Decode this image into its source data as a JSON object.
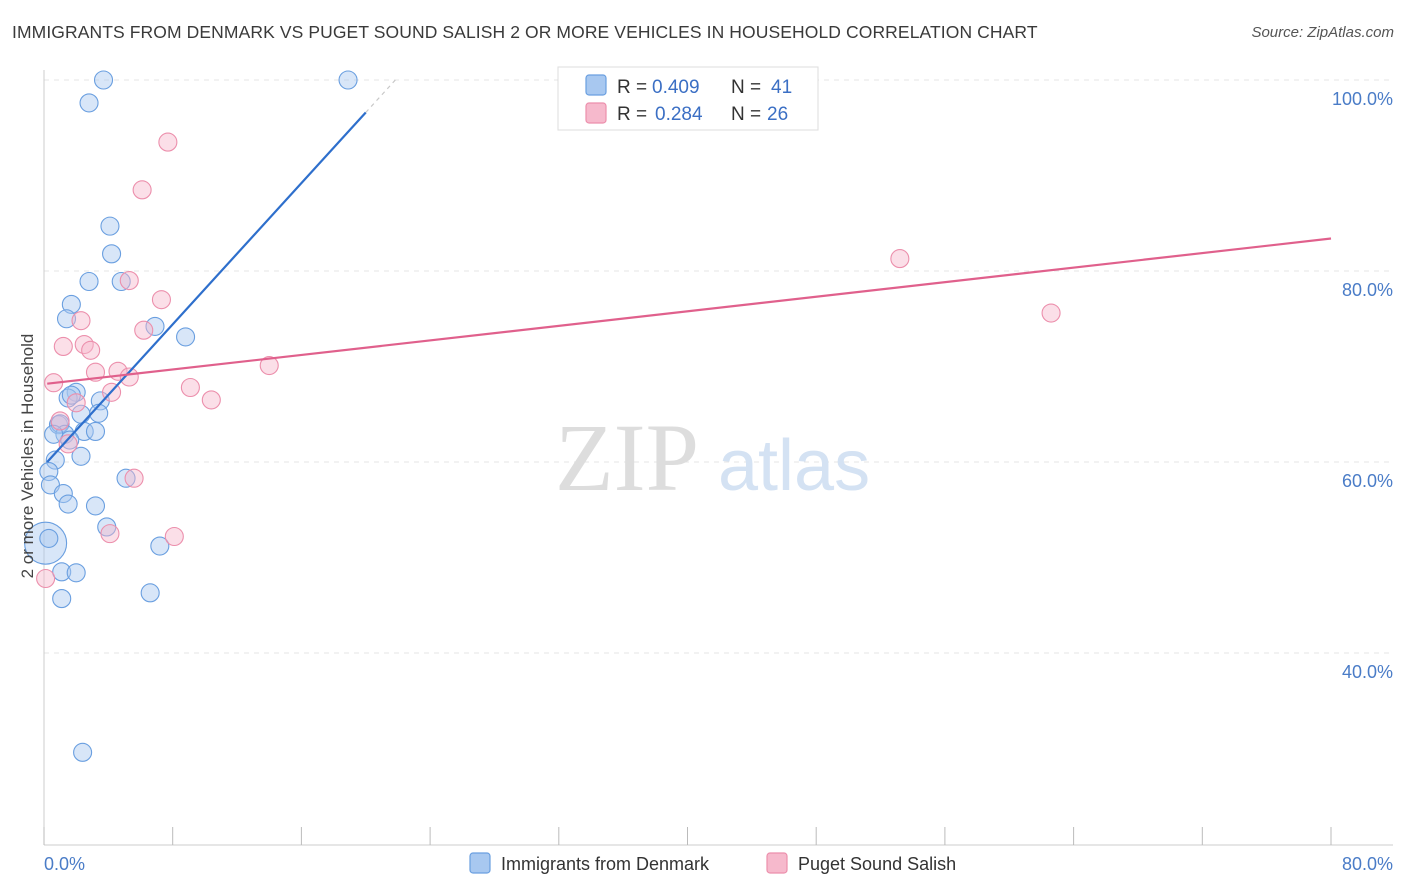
{
  "chart_data": {
    "type": "scatter",
    "title": "IMMIGRANTS FROM DENMARK VS PUGET SOUND SALISH 2 OR MORE VEHICLES IN HOUSEHOLD CORRELATION CHART",
    "source": "Source: ZipAtlas.com",
    "ylabel": "2 or more Vehicles in Household",
    "xlabel": "",
    "xlim": [
      0,
      80
    ],
    "ylim": [
      20,
      102
    ],
    "x_tick_labels": {
      "min": "0.0%",
      "max": "80.0%"
    },
    "y_ticks": [
      {
        "value": 100,
        "label": "100.0%"
      },
      {
        "value": 80,
        "label": "80.0%"
      },
      {
        "value": 60,
        "label": "60.0%"
      },
      {
        "value": 40,
        "label": "40.0%"
      }
    ],
    "watermark": {
      "zip": "ZIP",
      "atlas": "atlas"
    },
    "series": [
      {
        "name": "Immigrants from Denmark",
        "color": "#a8c8f0",
        "stroke": "#6a9fe0",
        "line_color": "#2e6fcc",
        "R": "0.409",
        "N": "41",
        "trend": {
          "x0": 0.2,
          "y0": 60.0,
          "x1": 20.0,
          "y1": 96.6,
          "dash_to_x": 22.0
        },
        "points": [
          [
            3.7,
            100.0
          ],
          [
            18.9,
            100.0
          ],
          [
            2.8,
            97.6
          ],
          [
            4.1,
            84.7
          ],
          [
            4.2,
            81.8
          ],
          [
            2.8,
            78.9
          ],
          [
            4.8,
            78.9
          ],
          [
            1.7,
            76.5
          ],
          [
            1.4,
            75.0
          ],
          [
            6.9,
            74.2
          ],
          [
            8.8,
            73.1
          ],
          [
            2.0,
            67.3
          ],
          [
            1.5,
            66.7
          ],
          [
            1.7,
            67.0
          ],
          [
            3.5,
            66.4
          ],
          [
            2.3,
            65.0
          ],
          [
            3.4,
            65.1
          ],
          [
            0.9,
            63.9
          ],
          [
            1.0,
            64.0
          ],
          [
            2.5,
            63.2
          ],
          [
            3.2,
            63.2
          ],
          [
            1.3,
            62.9
          ],
          [
            1.6,
            62.3
          ],
          [
            0.6,
            62.9
          ],
          [
            2.3,
            60.6
          ],
          [
            0.7,
            60.2
          ],
          [
            0.3,
            59.0
          ],
          [
            0.4,
            57.6
          ],
          [
            5.1,
            58.3
          ],
          [
            1.2,
            56.7
          ],
          [
            1.5,
            55.6
          ],
          [
            3.2,
            55.4
          ],
          [
            3.9,
            53.2
          ],
          [
            0.1,
            51.5
          ],
          [
            7.2,
            51.2
          ],
          [
            1.1,
            48.5
          ],
          [
            2.0,
            48.4
          ],
          [
            1.1,
            45.7
          ],
          [
            6.6,
            46.3
          ],
          [
            2.4,
            29.6
          ],
          [
            0.3,
            52.0
          ]
        ]
      },
      {
        "name": "Puget Sound Salish",
        "color": "#f6b9cc",
        "stroke": "#ec8fac",
        "line_color": "#e0608c",
        "R": "0.284",
        "N": "26",
        "trend": {
          "x0": 0.2,
          "y0": 68.2,
          "x1": 80.0,
          "y1": 83.4
        },
        "points": [
          [
            7.7,
            93.5
          ],
          [
            6.1,
            88.5
          ],
          [
            53.2,
            81.3
          ],
          [
            5.3,
            79.0
          ],
          [
            7.3,
            77.0
          ],
          [
            2.3,
            74.8
          ],
          [
            62.6,
            75.6
          ],
          [
            6.2,
            73.8
          ],
          [
            1.2,
            72.1
          ],
          [
            2.5,
            72.3
          ],
          [
            2.9,
            71.7
          ],
          [
            14.0,
            70.1
          ],
          [
            3.2,
            69.4
          ],
          [
            4.6,
            69.5
          ],
          [
            5.3,
            68.9
          ],
          [
            0.6,
            68.3
          ],
          [
            9.1,
            67.8
          ],
          [
            4.2,
            67.3
          ],
          [
            10.4,
            66.5
          ],
          [
            2.0,
            66.2
          ],
          [
            1.0,
            64.3
          ],
          [
            1.5,
            61.9
          ],
          [
            5.6,
            58.3
          ],
          [
            4.1,
            52.5
          ],
          [
            8.1,
            52.2
          ],
          [
            0.1,
            47.8
          ]
        ]
      }
    ],
    "legend": {
      "r_label": "R =",
      "n_label": "N ="
    }
  }
}
